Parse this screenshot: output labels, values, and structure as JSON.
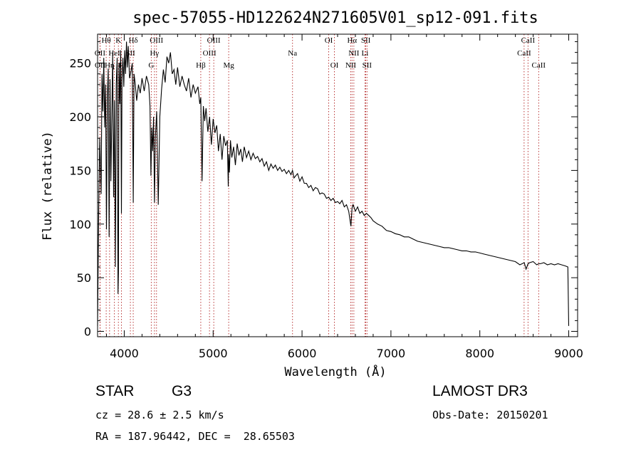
{
  "chart_data": {
    "type": "line",
    "title": "spec-57055-HD122624N271605V01_sp12-091.fits",
    "xlabel": "Wavelength (Å)",
    "ylabel": "Flux (relative)",
    "xlim": [
      3700,
      9100
    ],
    "ylim": [
      -5,
      277
    ],
    "xticks": [
      4000,
      5000,
      6000,
      7000,
      8000,
      9000
    ],
    "yticks": [
      0,
      50,
      100,
      150,
      200,
      250
    ],
    "series": [
      {
        "name": "flux",
        "x": [
          3700,
          3712,
          3725,
          3740,
          3750,
          3760,
          3770,
          3780,
          3790,
          3800,
          3810,
          3820,
          3830,
          3840,
          3850,
          3860,
          3870,
          3880,
          3890,
          3900,
          3910,
          3920,
          3930,
          3935,
          3940,
          3950,
          3960,
          3968,
          3975,
          3985,
          3995,
          4005,
          4015,
          4025,
          4035,
          4045,
          4060,
          4075,
          4090,
          4101,
          4110,
          4125,
          4140,
          4160,
          4180,
          4200,
          4225,
          4250,
          4275,
          4290,
          4300,
          4310,
          4320,
          4330,
          4340,
          4350,
          4365,
          4383,
          4400,
          4420,
          4440,
          4460,
          4480,
          4500,
          4520,
          4540,
          4560,
          4580,
          4600,
          4625,
          4650,
          4675,
          4700,
          4725,
          4750,
          4775,
          4800,
          4830,
          4850,
          4861,
          4875,
          4890,
          4905,
          4920,
          4940,
          4960,
          4980,
          5000,
          5020,
          5040,
          5060,
          5080,
          5100,
          5120,
          5140,
          5160,
          5170,
          5175,
          5183,
          5195,
          5210,
          5230,
          5250,
          5270,
          5290,
          5310,
          5330,
          5350,
          5375,
          5400,
          5425,
          5450,
          5475,
          5500,
          5525,
          5550,
          5575,
          5600,
          5625,
          5650,
          5675,
          5700,
          5725,
          5750,
          5775,
          5800,
          5825,
          5850,
          5875,
          5893,
          5910,
          5930,
          5950,
          5975,
          6000,
          6025,
          6050,
          6075,
          6100,
          6125,
          6150,
          6175,
          6200,
          6225,
          6250,
          6275,
          6300,
          6325,
          6350,
          6375,
          6400,
          6425,
          6450,
          6475,
          6500,
          6525,
          6550,
          6563,
          6575,
          6600,
          6625,
          6650,
          6675,
          6700,
          6725,
          6750,
          6775,
          6800,
          6850,
          6900,
          6950,
          7000,
          7050,
          7100,
          7150,
          7200,
          7250,
          7300,
          7350,
          7400,
          7450,
          7500,
          7550,
          7600,
          7650,
          7700,
          7750,
          7800,
          7850,
          7900,
          7950,
          8000,
          8050,
          8100,
          8150,
          8200,
          8250,
          8300,
          8350,
          8400,
          8450,
          8500,
          8520,
          8542,
          8560,
          8600,
          8640,
          8662,
          8680,
          8720,
          8760,
          8800,
          8840,
          8880,
          8920,
          8960,
          8990,
          9000
        ],
        "values": [
          5,
          110,
          180,
          128,
          240,
          205,
          255,
          190,
          230,
          95,
          218,
          245,
          88,
          235,
          140,
          200,
          260,
          125,
          215,
          60,
          230,
          255,
          35,
          55,
          250,
          212,
          262,
          110,
          235,
          255,
          228,
          262,
          240,
          270,
          246,
          266,
          236,
          242,
          250,
          120,
          240,
          230,
          215,
          230,
          222,
          236,
          224,
          238,
          230,
          210,
          145,
          190,
          168,
          200,
          120,
          180,
          205,
          118,
          200,
          226,
          244,
          232,
          256,
          250,
          260,
          240,
          244,
          230,
          246,
          228,
          238,
          230,
          224,
          236,
          218,
          230,
          222,
          228,
          212,
          218,
          140,
          210,
          196,
          208,
          186,
          200,
          174,
          198,
          185,
          192,
          168,
          184,
          160,
          182,
          173,
          178,
          135,
          165,
          148,
          178,
          162,
          172,
          155,
          175,
          164,
          170,
          158,
          172,
          162,
          168,
          160,
          166,
          161,
          163,
          158,
          161,
          154,
          158,
          150,
          156,
          152,
          155,
          150,
          153,
          149,
          151,
          147,
          150,
          146,
          150,
          143,
          145,
          147,
          140,
          144,
          138,
          138,
          134,
          136,
          131,
          134,
          133,
          128,
          129,
          128,
          124,
          125,
          122,
          124,
          120,
          121,
          119,
          122,
          116,
          118,
          112,
          98,
          115,
          118,
          112,
          116,
          110,
          112,
          108,
          110,
          108,
          106,
          103,
          100,
          98,
          94,
          93,
          91,
          90,
          88,
          88,
          86,
          84,
          83,
          82,
          81,
          80,
          79,
          78,
          78,
          77,
          76,
          75,
          75,
          74,
          74,
          73,
          72,
          71,
          70,
          69,
          68,
          67,
          66,
          65,
          62,
          64,
          58,
          63,
          64,
          65,
          62,
          63,
          63,
          64,
          62,
          63,
          62,
          63,
          62,
          61,
          60,
          5
        ]
      }
    ],
    "spectral_lines": [
      {
        "label": "Hθ",
        "wavelength": 3797,
        "row": 1
      },
      {
        "label": "K",
        "wavelength": 3934,
        "row": 1
      },
      {
        "label": "Hδ",
        "wavelength": 4101,
        "row": 1
      },
      {
        "label": "OIII",
        "wavelength": 4363,
        "row": 1
      },
      {
        "label": "OIII",
        "wavelength": 5007,
        "row": 1
      },
      {
        "label": "OI",
        "wavelength": 6300,
        "row": 1
      },
      {
        "label": "Hα",
        "wavelength": 6563,
        "row": 1
      },
      {
        "label": "SII",
        "wavelength": 6717,
        "row": 1
      },
      {
        "label": "CaII",
        "wavelength": 8542,
        "row": 1
      },
      {
        "label": "OII",
        "wavelength": 3727,
        "row": 2
      },
      {
        "label": "HeI",
        "wavelength": 3889,
        "row": 2
      },
      {
        "label": "SII",
        "wavelength": 4069,
        "row": 2
      },
      {
        "label": "Hγ",
        "wavelength": 4340,
        "row": 2
      },
      {
        "label": "OIII",
        "wavelength": 4959,
        "row": 2
      },
      {
        "label": "Na",
        "wavelength": 5893,
        "row": 2
      },
      {
        "label": "NII",
        "wavelength": 6583,
        "row": 2
      },
      {
        "label": "Li",
        "wavelength": 6708,
        "row": 2
      },
      {
        "label": "CaII",
        "wavelength": 8498,
        "row": 2
      },
      {
        "label": "OII",
        "wavelength": 3729,
        "row": 3
      },
      {
        "label": "Hη",
        "wavelength": 3835,
        "row": 3
      },
      {
        "label": "H",
        "wavelength": 3968,
        "row": 3
      },
      {
        "label": "G",
        "wavelength": 4304,
        "row": 3
      },
      {
        "label": "Hβ",
        "wavelength": 4861,
        "row": 3
      },
      {
        "label": "Mg",
        "wavelength": 5175,
        "row": 3
      },
      {
        "label": "OI",
        "wavelength": 6364,
        "row": 3
      },
      {
        "label": "NII",
        "wavelength": 6548,
        "row": 3
      },
      {
        "label": "SII",
        "wavelength": 6731,
        "row": 3
      },
      {
        "label": "CaII",
        "wavelength": 8662,
        "row": 3
      }
    ]
  },
  "colors": {
    "spectrum": "#000000",
    "line_markers": "#b22222"
  },
  "info": {
    "class_label": "STAR",
    "subclass": "G3",
    "survey": "LAMOST DR3",
    "cz_text": "cz = 28.6 ± 2.5 km/s",
    "obs_date_text": "Obs-Date: 20150201",
    "radec_text": "RA = 187.96442, DEC =  28.65503"
  }
}
